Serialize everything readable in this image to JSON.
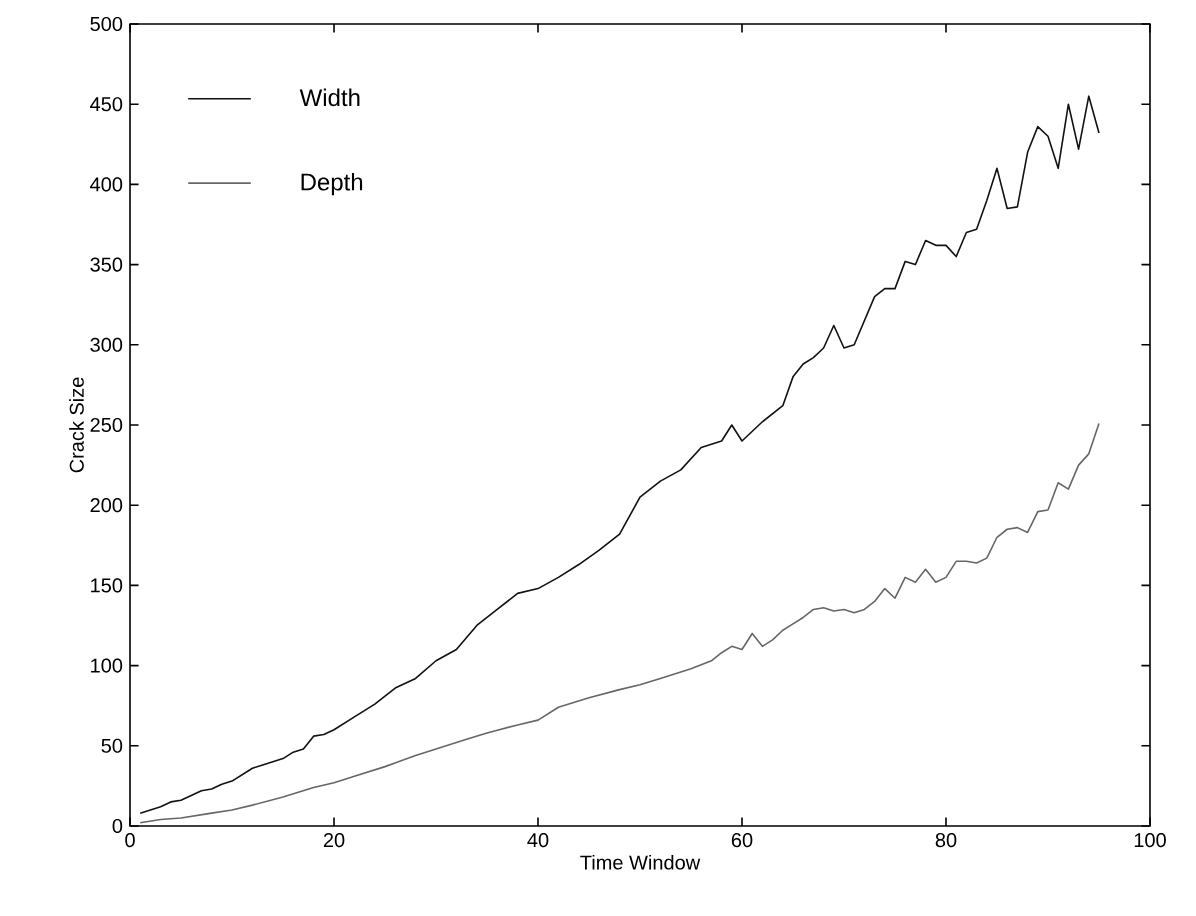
{
  "chart_data": {
    "type": "line",
    "xlabel": "Time Window",
    "ylabel": "Crack Size",
    "xlim": [
      0,
      100
    ],
    "ylim": [
      0,
      500
    ],
    "xticks": [
      0,
      20,
      40,
      60,
      80,
      100
    ],
    "yticks": [
      0,
      50,
      100,
      150,
      200,
      250,
      300,
      350,
      400,
      450,
      500
    ],
    "grid": false,
    "legend": "top left",
    "marker": "none",
    "line_style": "solid",
    "series": [
      {
        "name": "Width",
        "color": "#111111",
        "x": [
          1,
          2,
          3,
          4,
          5,
          6,
          7,
          8,
          9,
          10,
          11,
          12,
          13,
          14,
          15,
          16,
          17,
          18,
          19,
          20,
          22,
          24,
          26,
          28,
          30,
          32,
          34,
          36,
          38,
          40,
          42,
          44,
          46,
          48,
          50,
          52,
          54,
          56,
          58,
          59,
          60,
          62,
          64,
          65,
          66,
          67,
          68,
          69,
          70,
          71,
          72,
          73,
          74,
          75,
          76,
          77,
          78,
          79,
          80,
          81,
          82,
          83,
          84,
          85,
          86,
          87,
          88,
          89,
          90,
          91,
          92,
          93,
          94,
          95
        ],
        "values": [
          8,
          10,
          12,
          15,
          16,
          19,
          22,
          23,
          26,
          28,
          32,
          36,
          38,
          40,
          42,
          46,
          48,
          56,
          57,
          60,
          68,
          76,
          86,
          92,
          103,
          110,
          125,
          135,
          145,
          148,
          155,
          163,
          172,
          182,
          205,
          215,
          222,
          236,
          240,
          250,
          240,
          252,
          262,
          280,
          288,
          292,
          298,
          312,
          298,
          300,
          315,
          330,
          335,
          335,
          352,
          350,
          365,
          362,
          362,
          355,
          370,
          372,
          390,
          410,
          385,
          386,
          420,
          436,
          430,
          410,
          450,
          422,
          455,
          432
        ]
      },
      {
        "name": "Depth",
        "color": "#666666",
        "x": [
          1,
          3,
          5,
          8,
          10,
          12,
          15,
          18,
          20,
          22,
          25,
          28,
          30,
          33,
          35,
          38,
          40,
          42,
          45,
          48,
          50,
          52,
          55,
          57,
          58,
          59,
          60,
          61,
          62,
          63,
          64,
          65,
          66,
          67,
          68,
          69,
          70,
          71,
          72,
          73,
          74,
          75,
          76,
          77,
          78,
          79,
          80,
          81,
          82,
          83,
          84,
          85,
          86,
          87,
          88,
          89,
          90,
          91,
          92,
          93,
          94,
          95
        ],
        "values": [
          2,
          4,
          5,
          8,
          10,
          13,
          18,
          24,
          27,
          31,
          37,
          44,
          48,
          54,
          58,
          63,
          66,
          74,
          80,
          85,
          88,
          92,
          98,
          103,
          108,
          112,
          110,
          120,
          112,
          116,
          122,
          126,
          130,
          135,
          136,
          134,
          135,
          133,
          135,
          140,
          148,
          142,
          155,
          152,
          160,
          152,
          155,
          165,
          165,
          164,
          167,
          180,
          185,
          186,
          183,
          196,
          197,
          214,
          210,
          225,
          232,
          251
        ]
      }
    ]
  }
}
